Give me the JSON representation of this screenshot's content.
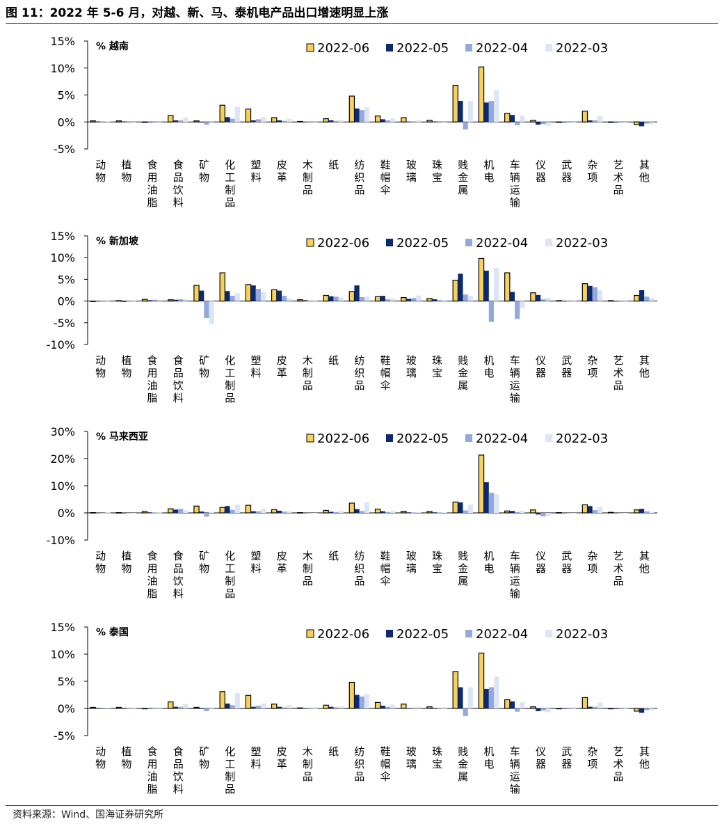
{
  "figure_title": "图 11：2022 年 5-6 月，对越、新、马、泰机电产品出口增速明显上涨",
  "source": "资料来源：Wind、国海证券研究所",
  "colors": {
    "s2022_06": "#F7D15C",
    "s2022_06_stroke": "#000000",
    "s2022_05": "#0D2A6E",
    "s2022_04": "#93A9DD",
    "s2022_03": "#DCE4F5"
  },
  "chart_data": [
    {
      "type": "bar",
      "title": "% 越南",
      "yticks": [
        "15%",
        "10%",
        "5%",
        "0%",
        "-5%"
      ],
      "ylim": [
        -5,
        15
      ],
      "categories": [
        "动物",
        "植物",
        "食用油脂",
        "食品饮料",
        "矿物",
        "化工制品",
        "塑料",
        "皮革",
        "木制品",
        "纸",
        "纺织品",
        "鞋帽伞",
        "玻璃",
        "珠宝",
        "贱金属",
        "机电",
        "车辆运输",
        "仪器",
        "武器",
        "杂项",
        "艺术品",
        "其他"
      ],
      "series": [
        {
          "name": "2022-06",
          "values": [
            0.2,
            0.2,
            0.0,
            1.2,
            0.2,
            3.1,
            2.4,
            0.8,
            0.1,
            0.6,
            4.8,
            1.1,
            0.8,
            0.3,
            6.8,
            10.2,
            1.6,
            0.3,
            0.0,
            2.0,
            0.0,
            -0.5
          ]
        },
        {
          "name": "2022-05",
          "values": [
            0.1,
            0.1,
            0.0,
            0.3,
            -0.1,
            0.9,
            0.3,
            0.3,
            0.0,
            0.3,
            2.5,
            0.5,
            0.0,
            0.1,
            3.9,
            3.6,
            1.3,
            -0.5,
            0.0,
            0.3,
            -0.1,
            -0.8
          ]
        },
        {
          "name": "2022-04",
          "values": [
            0.1,
            0.0,
            0.0,
            0.3,
            -0.5,
            0.6,
            0.5,
            0.2,
            0.0,
            0.2,
            2.2,
            0.3,
            -0.1,
            0.0,
            -1.4,
            3.9,
            -0.6,
            -0.4,
            -0.1,
            0.3,
            -0.1,
            -0.3
          ]
        },
        {
          "name": "2022-03",
          "values": [
            0.1,
            0.0,
            0.0,
            0.8,
            -0.2,
            2.8,
            0.9,
            0.6,
            0.0,
            0.4,
            2.7,
            0.7,
            0.3,
            0.0,
            3.9,
            5.9,
            1.2,
            -0.7,
            -0.1,
            1.1,
            0.0,
            -0.4
          ]
        }
      ]
    },
    {
      "type": "bar",
      "title": "% 新加坡",
      "yticks": [
        "15%",
        "10%",
        "5%",
        "0%",
        "-5%",
        "-10%"
      ],
      "ylim": [
        -10,
        15
      ],
      "categories": [
        "动物",
        "植物",
        "食用油脂",
        "食品饮料",
        "矿物",
        "化工制品",
        "塑料",
        "皮革",
        "木制品",
        "纸",
        "纺织品",
        "鞋帽伞",
        "玻璃",
        "珠宝",
        "贱金属",
        "机电",
        "车辆运输",
        "仪器",
        "武器",
        "杂项",
        "艺术品",
        "其他"
      ],
      "series": [
        {
          "name": "2022-06",
          "values": [
            0.0,
            0.1,
            0.4,
            0.3,
            3.6,
            6.5,
            3.8,
            2.6,
            0.3,
            1.3,
            2.2,
            1.0,
            0.8,
            0.6,
            4.8,
            9.8,
            6.5,
            1.9,
            0.1,
            4.0,
            0.1,
            1.3
          ]
        },
        {
          "name": "2022-05",
          "values": [
            0.0,
            -0.2,
            0.2,
            0.3,
            2.4,
            2.3,
            3.6,
            2.4,
            0.2,
            1.1,
            3.6,
            1.2,
            0.5,
            0.4,
            6.3,
            7.0,
            2.1,
            1.4,
            0.0,
            3.5,
            0.0,
            2.5
          ]
        },
        {
          "name": "2022-04",
          "values": [
            0.0,
            0.0,
            0.3,
            0.4,
            -3.9,
            1.2,
            2.8,
            1.2,
            0.1,
            1.0,
            0.9,
            0.4,
            0.7,
            0.2,
            1.5,
            -4.8,
            -4.1,
            0.4,
            0.0,
            3.2,
            0.0,
            1.0
          ]
        },
        {
          "name": "2022-03",
          "values": [
            0.0,
            0.1,
            0.3,
            0.4,
            -5.3,
            1.8,
            2.0,
            0.6,
            0.1,
            0.8,
            1.0,
            0.6,
            1.3,
            -0.3,
            1.2,
            7.6,
            -1.6,
            0.7,
            0.0,
            2.5,
            0.0,
            0.7
          ]
        }
      ]
    },
    {
      "type": "bar",
      "title": "% 马来西亚",
      "yticks": [
        "30%",
        "20%",
        "10%",
        "0%",
        "-10%"
      ],
      "ylim": [
        -10,
        30
      ],
      "categories": [
        "动物",
        "植物",
        "食用油脂",
        "食品饮料",
        "矿物",
        "化工制品",
        "塑料",
        "皮革",
        "木制品",
        "纸",
        "纺织品",
        "鞋帽伞",
        "玻璃",
        "珠宝",
        "贱金属",
        "机电",
        "车辆运输",
        "仪器",
        "武器",
        "杂项",
        "艺术品",
        "其他"
      ],
      "series": [
        {
          "name": "2022-06",
          "values": [
            0.1,
            0.1,
            0.5,
            1.5,
            2.5,
            2.0,
            2.8,
            1.2,
            0.1,
            0.9,
            3.6,
            1.4,
            0.6,
            0.5,
            4.0,
            21.3,
            0.7,
            1.1,
            0.1,
            3.0,
            0.2,
            1.1
          ]
        },
        {
          "name": "2022-05",
          "values": [
            0.0,
            -0.2,
            0.2,
            1.2,
            0.5,
            2.5,
            0.6,
            0.8,
            0.0,
            0.4,
            1.4,
            0.6,
            0.2,
            0.2,
            3.9,
            11.3,
            0.7,
            -0.6,
            0.0,
            2.5,
            -0.1,
            1.5
          ]
        },
        {
          "name": "2022-04",
          "values": [
            0.0,
            0.0,
            0.1,
            1.5,
            -1.4,
            1.1,
            0.6,
            0.5,
            0.0,
            0.3,
            0.7,
            0.3,
            0.1,
            0.1,
            0.9,
            7.4,
            0.3,
            -1.3,
            0.0,
            1.0,
            0.0,
            0.6
          ]
        },
        {
          "name": "2022-03",
          "values": [
            0.1,
            0.0,
            0.1,
            0.9,
            0.4,
            3.0,
            1.5,
            0.6,
            0.0,
            0.7,
            3.9,
            0.8,
            0.3,
            0.2,
            3.0,
            6.9,
            0.8,
            -1.2,
            0.0,
            2.2,
            0.0,
            0.4
          ]
        }
      ]
    },
    {
      "type": "bar",
      "title": "% 泰国",
      "yticks": [
        "15%",
        "10%",
        "5%",
        "0%",
        "-5%"
      ],
      "ylim": [
        -5,
        15
      ],
      "categories": [
        "动物",
        "植物",
        "食用油脂",
        "食品饮料",
        "矿物",
        "化工制品",
        "塑料",
        "皮革",
        "木制品",
        "纸",
        "纺织品",
        "鞋帽伞",
        "玻璃",
        "珠宝",
        "贱金属",
        "机电",
        "车辆运输",
        "仪器",
        "武器",
        "杂项",
        "艺术品",
        "其他"
      ],
      "series": [
        {
          "name": "2022-06",
          "values": [
            0.2,
            0.2,
            0.0,
            1.2,
            0.2,
            3.1,
            2.4,
            0.8,
            0.1,
            0.6,
            4.8,
            1.1,
            0.8,
            0.3,
            6.8,
            10.2,
            1.6,
            0.3,
            0.0,
            2.0,
            0.0,
            -0.5
          ]
        },
        {
          "name": "2022-05",
          "values": [
            0.1,
            0.1,
            0.0,
            0.3,
            -0.1,
            0.9,
            0.3,
            0.3,
            0.0,
            0.3,
            2.5,
            0.5,
            0.0,
            0.1,
            3.9,
            3.6,
            1.3,
            -0.5,
            0.0,
            0.3,
            -0.1,
            -0.8
          ]
        },
        {
          "name": "2022-04",
          "values": [
            0.1,
            0.0,
            0.0,
            0.3,
            -0.5,
            0.6,
            0.5,
            0.2,
            0.0,
            0.2,
            2.2,
            0.3,
            -0.1,
            0.0,
            -1.4,
            3.9,
            -0.6,
            -0.4,
            -0.1,
            0.3,
            -0.1,
            -0.3
          ]
        },
        {
          "name": "2022-03",
          "values": [
            0.1,
            0.0,
            0.0,
            0.8,
            -0.2,
            2.8,
            0.9,
            0.6,
            0.0,
            0.4,
            2.7,
            0.7,
            0.3,
            0.0,
            3.9,
            5.9,
            1.2,
            -0.7,
            -0.1,
            1.1,
            0.0,
            -0.4
          ]
        }
      ]
    }
  ]
}
